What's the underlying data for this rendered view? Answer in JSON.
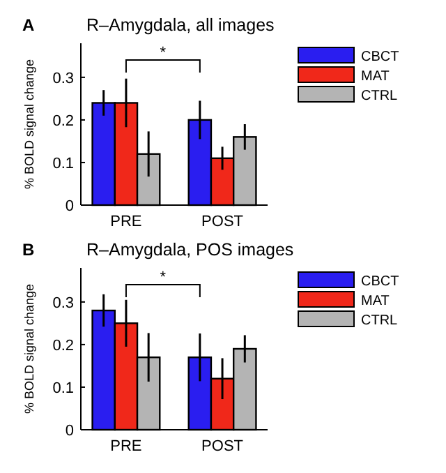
{
  "chart_data": [
    {
      "type": "bar",
      "title": "R–Amygdala, all images",
      "ylabel": "% BOLD signal change",
      "categories": [
        "PRE",
        "POST"
      ],
      "annotations": [
        "A",
        "*"
      ],
      "ylim": [
        0,
        0.38
      ],
      "yticks": [
        {
          "value": 0,
          "label": "0"
        },
        0.1,
        0.2,
        0.3
      ],
      "legend": "top right",
      "series": [
        {
          "name": "CBCT",
          "color": "#2a1ef0",
          "values": [
            0.24,
            0.2
          ],
          "errors": [
            0.03,
            0.045
          ]
        },
        {
          "name": "MAT",
          "color": "#f0281a",
          "values": [
            0.24,
            0.11
          ],
          "errors": [
            0.057,
            0.027
          ]
        },
        {
          "name": "CTRL",
          "color": "#b4b4b4",
          "values": [
            0.12,
            0.16
          ],
          "errors": [
            0.053,
            0.03
          ]
        }
      ]
    },
    {
      "type": "bar",
      "title": "R–Amygdala, POS images",
      "ylabel": "% BOLD signal change",
      "categories": [
        "PRE",
        "POST"
      ],
      "annotations": [
        "B",
        "*"
      ],
      "ylim": [
        0,
        0.38
      ],
      "yticks": [
        {
          "value": 0,
          "label": "0"
        },
        0.1,
        0.2,
        0.3
      ],
      "legend": "top right",
      "series": [
        {
          "name": "CBCT",
          "color": "#2a1ef0",
          "values": [
            0.28,
            0.17
          ],
          "errors": [
            0.038,
            0.056
          ]
        },
        {
          "name": "MAT",
          "color": "#f0281a",
          "values": [
            0.25,
            0.12
          ],
          "errors": [
            0.055,
            0.048
          ]
        },
        {
          "name": "CTRL",
          "color": "#b4b4b4",
          "values": [
            0.17,
            0.19
          ],
          "errors": [
            0.057,
            0.032
          ]
        }
      ]
    }
  ]
}
